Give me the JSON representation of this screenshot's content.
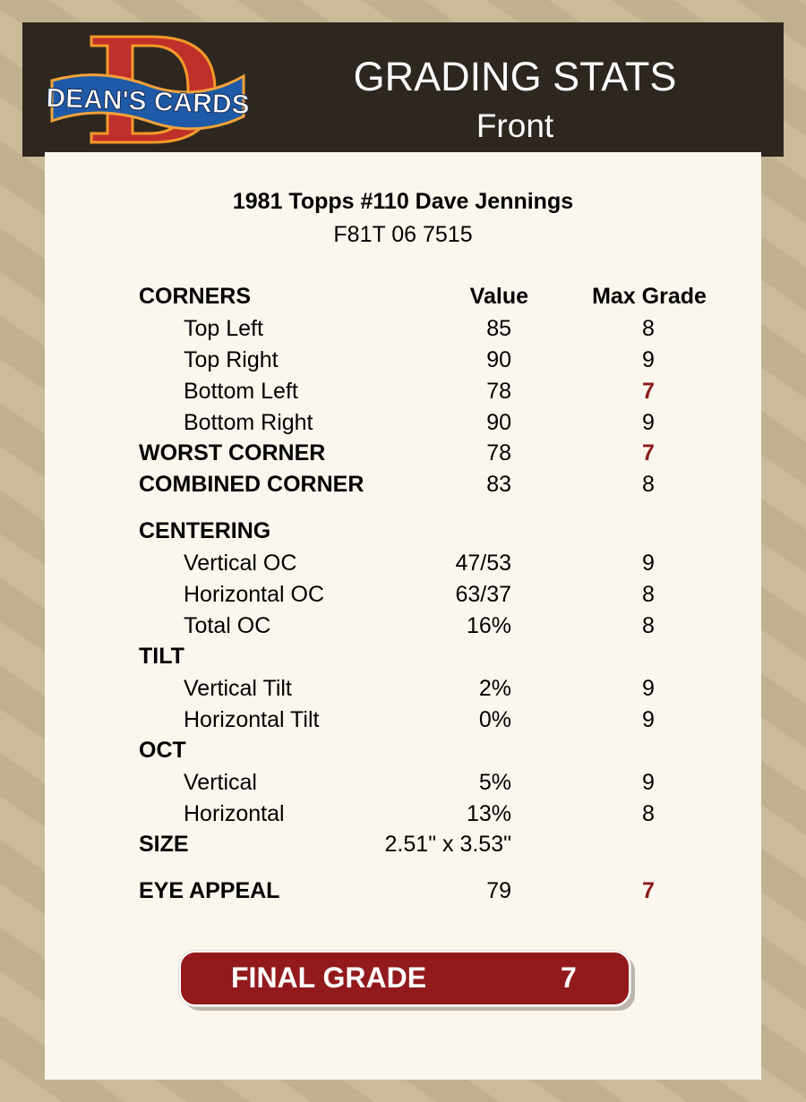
{
  "header": {
    "logo_text": "DEAN'S CARDS",
    "title": "GRADING STATS",
    "subtitle": "Front"
  },
  "card": {
    "name": "1981 Topps #110 Dave Jennings",
    "cert": "F81T 06 7515"
  },
  "columns": {
    "value": "Value",
    "max_grade": "Max Grade"
  },
  "colors": {
    "header_bg": "#2e2720",
    "panel_bg": "#fcf7ee",
    "low_grade": "#8b1a1a",
    "final_bg": "#921a1c"
  },
  "rows": [
    {
      "label": "CORNERS",
      "kind": "sec",
      "value": "",
      "max": "",
      "header": true
    },
    {
      "label": "Top Left",
      "kind": "sub",
      "value": "85",
      "max": "8"
    },
    {
      "label": "Top Right",
      "kind": "sub",
      "value": "90",
      "max": "9"
    },
    {
      "label": "Bottom Left",
      "kind": "sub",
      "value": "78",
      "max": "7",
      "low": true
    },
    {
      "label": "Bottom Right",
      "kind": "sub",
      "value": "90",
      "max": "9"
    },
    {
      "label": "WORST CORNER",
      "kind": "sec",
      "value": "78",
      "max": "7",
      "low": true
    },
    {
      "label": "COMBINED CORNER",
      "kind": "sec",
      "value": "83",
      "max": "8"
    },
    {
      "label": "CENTERING",
      "kind": "sec",
      "value": "",
      "max": ""
    },
    {
      "label": "Vertical OC",
      "kind": "sub",
      "value": "47/53",
      "max": "9"
    },
    {
      "label": "Horizontal OC",
      "kind": "sub",
      "value": "63/37",
      "max": "8"
    },
    {
      "label": "Total OC",
      "kind": "sub",
      "value": "16%",
      "max": "8"
    },
    {
      "label": "TILT",
      "kind": "sec",
      "value": "",
      "max": ""
    },
    {
      "label": "Vertical Tilt",
      "kind": "sub",
      "value": "2%",
      "max": "9"
    },
    {
      "label": "Horizontal Tilt",
      "kind": "sub",
      "value": "0%",
      "max": "9"
    },
    {
      "label": "OCT",
      "kind": "sec",
      "value": "",
      "max": ""
    },
    {
      "label": "Vertical",
      "kind": "sub",
      "value": "5%",
      "max": "9"
    },
    {
      "label": "Horizontal",
      "kind": "sub",
      "value": "13%",
      "max": "8"
    },
    {
      "label": "SIZE",
      "kind": "sec",
      "value": "2.51\" x 3.53\"",
      "max": ""
    },
    {
      "label": "EYE APPEAL",
      "kind": "sec",
      "value": "79",
      "max": "7",
      "low": true
    }
  ],
  "final": {
    "label": "FINAL GRADE",
    "value": "7"
  }
}
